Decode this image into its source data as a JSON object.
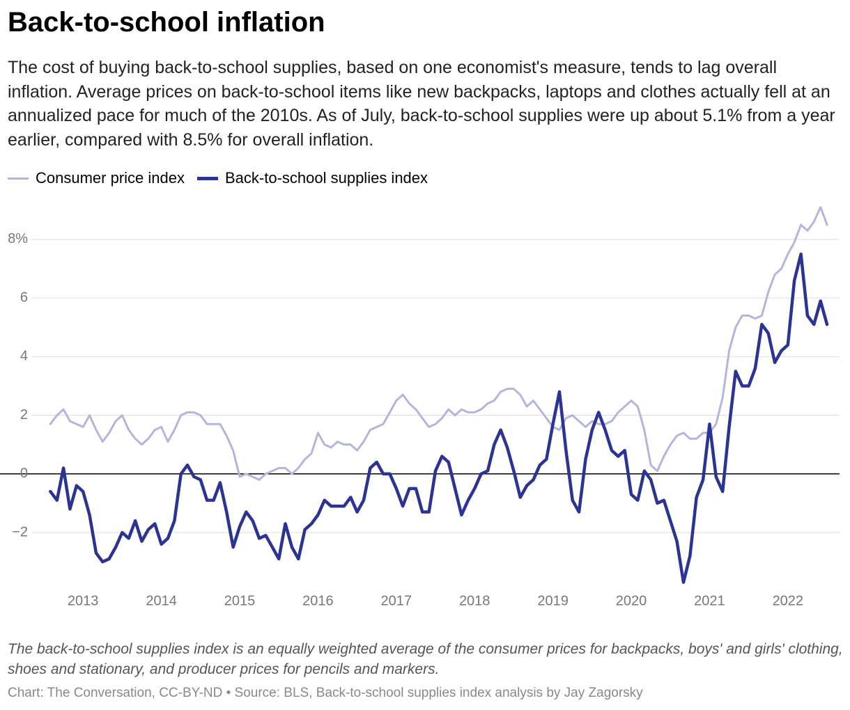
{
  "chart_data": {
    "type": "line",
    "title": "Back-to-school inflation",
    "subtitle": "The cost of buying back-to-school supplies, based on one economist's measure, tends to lag overall inflation. Average prices on back-to-school items like new backpacks, laptops and clothes actually fell at an annualized pace for much of the 2010s. As of July, back-to-school supplies were up about 5.1% from a year earlier, compared with 8.5% for overall inflation.",
    "note": "The back-to-school supplies index is an equally weighted average of the consumer prices for backpacks, boys' and girls' clothing, shoes and stationary, and producer prices for pencils and markers.",
    "source": "Chart: The Conversation, CC-BY-ND • Source: BLS, Back-to-school supplies index analysis by Jay Zagorsky",
    "x": [
      2012.583,
      2012.667,
      2012.75,
      2012.833,
      2012.917,
      2013,
      2013.083,
      2013.167,
      2013.25,
      2013.333,
      2013.417,
      2013.5,
      2013.583,
      2013.667,
      2013.75,
      2013.833,
      2013.917,
      2014,
      2014.083,
      2014.167,
      2014.25,
      2014.333,
      2014.417,
      2014.5,
      2014.583,
      2014.667,
      2014.75,
      2014.833,
      2014.917,
      2015,
      2015.083,
      2015.167,
      2015.25,
      2015.333,
      2015.417,
      2015.5,
      2015.583,
      2015.667,
      2015.75,
      2015.833,
      2015.917,
      2016,
      2016.083,
      2016.167,
      2016.25,
      2016.333,
      2016.417,
      2016.5,
      2016.583,
      2016.667,
      2016.75,
      2016.833,
      2016.917,
      2017,
      2017.083,
      2017.167,
      2017.25,
      2017.333,
      2017.417,
      2017.5,
      2017.583,
      2017.667,
      2017.75,
      2017.833,
      2017.917,
      2018,
      2018.083,
      2018.167,
      2018.25,
      2018.333,
      2018.417,
      2018.5,
      2018.583,
      2018.667,
      2018.75,
      2018.833,
      2018.917,
      2019,
      2019.083,
      2019.167,
      2019.25,
      2019.333,
      2019.417,
      2019.5,
      2019.583,
      2019.667,
      2019.75,
      2019.833,
      2019.917,
      2020,
      2020.083,
      2020.167,
      2020.25,
      2020.333,
      2020.417,
      2020.5,
      2020.583,
      2020.667,
      2020.75,
      2020.833,
      2020.917,
      2021,
      2021.083,
      2021.167,
      2021.25,
      2021.333,
      2021.417,
      2021.5,
      2021.583,
      2021.667,
      2021.75,
      2021.833,
      2021.917,
      2022,
      2022.083,
      2022.167,
      2022.25,
      2022.333,
      2022.417,
      2022.5
    ],
    "series": [
      {
        "name": "Consumer price index",
        "color": "#b3b6dc",
        "values": [
          1.7,
          2.0,
          2.2,
          1.8,
          1.7,
          1.6,
          2.0,
          1.5,
          1.1,
          1.4,
          1.8,
          2.0,
          1.5,
          1.2,
          1.0,
          1.2,
          1.5,
          1.6,
          1.1,
          1.5,
          2.0,
          2.1,
          2.1,
          2.0,
          1.7,
          1.7,
          1.7,
          1.3,
          0.8,
          -0.1,
          0.0,
          -0.1,
          -0.2,
          0.0,
          0.1,
          0.2,
          0.2,
          0.0,
          0.2,
          0.5,
          0.7,
          1.4,
          1.0,
          0.9,
          1.1,
          1.0,
          1.0,
          0.8,
          1.1,
          1.5,
          1.6,
          1.7,
          2.1,
          2.5,
          2.7,
          2.4,
          2.2,
          1.9,
          1.6,
          1.7,
          1.9,
          2.2,
          2.0,
          2.2,
          2.1,
          2.1,
          2.2,
          2.4,
          2.5,
          2.8,
          2.9,
          2.9,
          2.7,
          2.3,
          2.5,
          2.2,
          1.9,
          1.6,
          1.5,
          1.9,
          2.0,
          1.8,
          1.6,
          1.8,
          1.7,
          1.7,
          1.8,
          2.1,
          2.3,
          2.5,
          2.3,
          1.5,
          0.3,
          0.1,
          0.6,
          1.0,
          1.3,
          1.4,
          1.2,
          1.2,
          1.4,
          1.4,
          1.7,
          2.6,
          4.2,
          5.0,
          5.4,
          5.4,
          5.3,
          5.4,
          6.2,
          6.8,
          7.0,
          7.5,
          7.9,
          8.5,
          8.3,
          8.6,
          9.1,
          8.5
        ]
      },
      {
        "name": "Back-to-school supplies index",
        "color": "#2b3394",
        "values": [
          -0.6,
          -0.9,
          0.2,
          -1.2,
          -0.4,
          -0.6,
          -1.4,
          -2.7,
          -3.0,
          -2.9,
          -2.5,
          -2.0,
          -2.2,
          -1.6,
          -2.3,
          -1.9,
          -1.7,
          -2.4,
          -2.2,
          -1.6,
          0.0,
          0.3,
          -0.1,
          -0.2,
          -0.9,
          -0.9,
          -0.3,
          -1.3,
          -2.5,
          -1.8,
          -1.3,
          -1.6,
          -2.2,
          -2.1,
          -2.5,
          -2.9,
          -1.7,
          -2.5,
          -2.9,
          -1.9,
          -1.7,
          -1.4,
          -0.9,
          -1.1,
          -1.1,
          -1.1,
          -0.8,
          -1.3,
          -0.9,
          0.2,
          0.4,
          0.0,
          0.0,
          -0.5,
          -1.1,
          -0.5,
          -0.5,
          -1.3,
          -1.3,
          0.1,
          0.6,
          0.4,
          -0.5,
          -1.4,
          -0.9,
          -0.5,
          0.0,
          0.1,
          1.0,
          1.5,
          0.9,
          0.1,
          -0.8,
          -0.4,
          -0.2,
          0.3,
          0.5,
          1.7,
          2.8,
          0.8,
          -0.9,
          -1.3,
          0.5,
          1.5,
          2.1,
          1.5,
          0.8,
          0.6,
          0.8,
          -0.7,
          -0.9,
          0.1,
          -0.2,
          -1.0,
          -0.9,
          -1.6,
          -2.3,
          -3.7,
          -2.8,
          -0.8,
          -0.2,
          1.7,
          -0.1,
          -0.6,
          1.6,
          3.5,
          3.0,
          3.0,
          3.6,
          5.1,
          4.8,
          3.8,
          4.2,
          4.4,
          6.6,
          7.5,
          5.4,
          5.1,
          5.9,
          5.1
        ]
      }
    ],
    "xlim": [
      2012.34,
      2022.66
    ],
    "xticks": [
      2013,
      2014,
      2015,
      2016,
      2017,
      2018,
      2019,
      2020,
      2021,
      2022
    ],
    "ylim": [
      -3.9,
      9.4
    ],
    "yticks": [
      {
        "value": -2,
        "label": "−2"
      },
      0,
      2,
      4,
      6,
      {
        "value": 8,
        "label": "8%"
      }
    ],
    "grid": true
  }
}
